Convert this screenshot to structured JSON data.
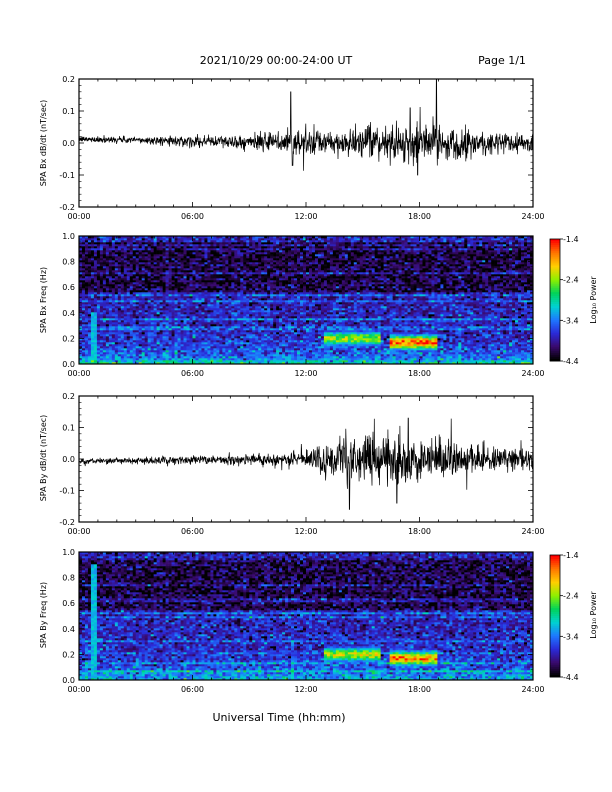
{
  "header": {
    "date_range": "2021/10/29  00:00-24:00 UT",
    "page": "Page 1/1"
  },
  "x_axis": {
    "title": "Universal Time (hh:mm)",
    "tick_labels": [
      "00:00",
      "06:00",
      "12:00",
      "18:00",
      "24:00"
    ],
    "ticks_hours": [
      0,
      6,
      12,
      18,
      24
    ],
    "range_hours": [
      0,
      24
    ]
  },
  "colors": {
    "trace": "#000000",
    "colormap": [
      "#000000",
      "#3a0a6e",
      "#2a2ad8",
      "#1e78ff",
      "#00d2d2",
      "#00d25a",
      "#8cf000",
      "#ffd000",
      "#ff7800",
      "#ff0000"
    ]
  },
  "colorbar": {
    "label": "Log₁₀ Power",
    "tick_labels": [
      "-1.4",
      "-2.4",
      "-3.4",
      "-4.4"
    ],
    "range": [
      -4.4,
      -1.4
    ]
  },
  "chart_data": [
    {
      "type": "line",
      "ylabel": "SPA Bx dB/dt (nT/sec)",
      "ylim": [
        -0.2,
        0.2
      ],
      "y_tick_labels": [
        "0.2",
        "0.1",
        "0.0",
        "-0.1",
        "-0.2"
      ],
      "x_unit": "hours UT",
      "envelope": {
        "x": [
          0,
          3,
          6,
          9,
          10.5,
          11.5,
          12,
          13,
          14,
          15,
          16,
          17,
          18,
          19,
          20,
          22,
          24
        ],
        "amplitude": [
          0.008,
          0.01,
          0.015,
          0.02,
          0.03,
          0.05,
          0.04,
          0.03,
          0.035,
          0.04,
          0.045,
          0.05,
          0.055,
          0.05,
          0.045,
          0.035,
          0.025
        ]
      },
      "spikes": [
        {
          "x": 11.2,
          "y": 0.16
        },
        {
          "x": 11.3,
          "y": -0.07
        },
        {
          "x": 18.9,
          "y": 0.2
        },
        {
          "x": 17.5,
          "y": 0.11
        },
        {
          "x": 17.9,
          "y": -0.1
        }
      ]
    },
    {
      "type": "heatmap",
      "ylabel": "SPA Bx Freq (Hz)",
      "ylim": [
        0,
        1.0
      ],
      "y_tick_labels": [
        "1.0",
        "0.8",
        "0.6",
        "0.4",
        "0.2",
        "0.0"
      ],
      "value_unit": "log10 power",
      "features": [
        {
          "x_range": [
            13,
            16
          ],
          "freq": 0.2,
          "level": -2.2
        },
        {
          "x_range": [
            16.5,
            19
          ],
          "freq": 0.17,
          "level": -1.5
        },
        {
          "x_range": [
            0.7,
            0.9
          ],
          "freq_range": [
            0,
            0.4
          ],
          "level": -3.0
        }
      ]
    },
    {
      "type": "line",
      "ylabel": "SPA By dB/dt (nT/sec)",
      "ylim": [
        -0.2,
        0.2
      ],
      "y_tick_labels": [
        "0.2",
        "0.1",
        "0.0",
        "-0.1",
        "-0.2"
      ],
      "x_unit": "hours UT",
      "envelope": {
        "x": [
          0,
          3,
          6,
          9,
          11,
          12,
          13,
          14,
          15,
          16,
          17,
          18,
          19,
          20,
          22,
          24
        ],
        "amplitude": [
          0.008,
          0.01,
          0.012,
          0.015,
          0.02,
          0.03,
          0.05,
          0.06,
          0.065,
          0.07,
          0.07,
          0.065,
          0.06,
          0.05,
          0.04,
          0.03
        ]
      },
      "spikes": [
        {
          "x": 17.4,
          "y": 0.13
        },
        {
          "x": 14.3,
          "y": -0.16
        },
        {
          "x": 16.8,
          "y": -0.14
        }
      ]
    },
    {
      "type": "heatmap",
      "ylabel": "SPA By Freq (Hz)",
      "ylim": [
        0,
        1.0
      ],
      "y_tick_labels": [
        "1.0",
        "0.8",
        "0.6",
        "0.4",
        "0.2",
        "0.0"
      ],
      "value_unit": "log10 power",
      "features": [
        {
          "x_range": [
            13,
            16
          ],
          "freq": 0.2,
          "level": -2.1
        },
        {
          "x_range": [
            16.5,
            19
          ],
          "freq": 0.17,
          "level": -1.6
        },
        {
          "x_range": [
            0.7,
            0.9
          ],
          "freq_range": [
            0,
            0.9
          ],
          "level": -3.0
        }
      ]
    }
  ]
}
